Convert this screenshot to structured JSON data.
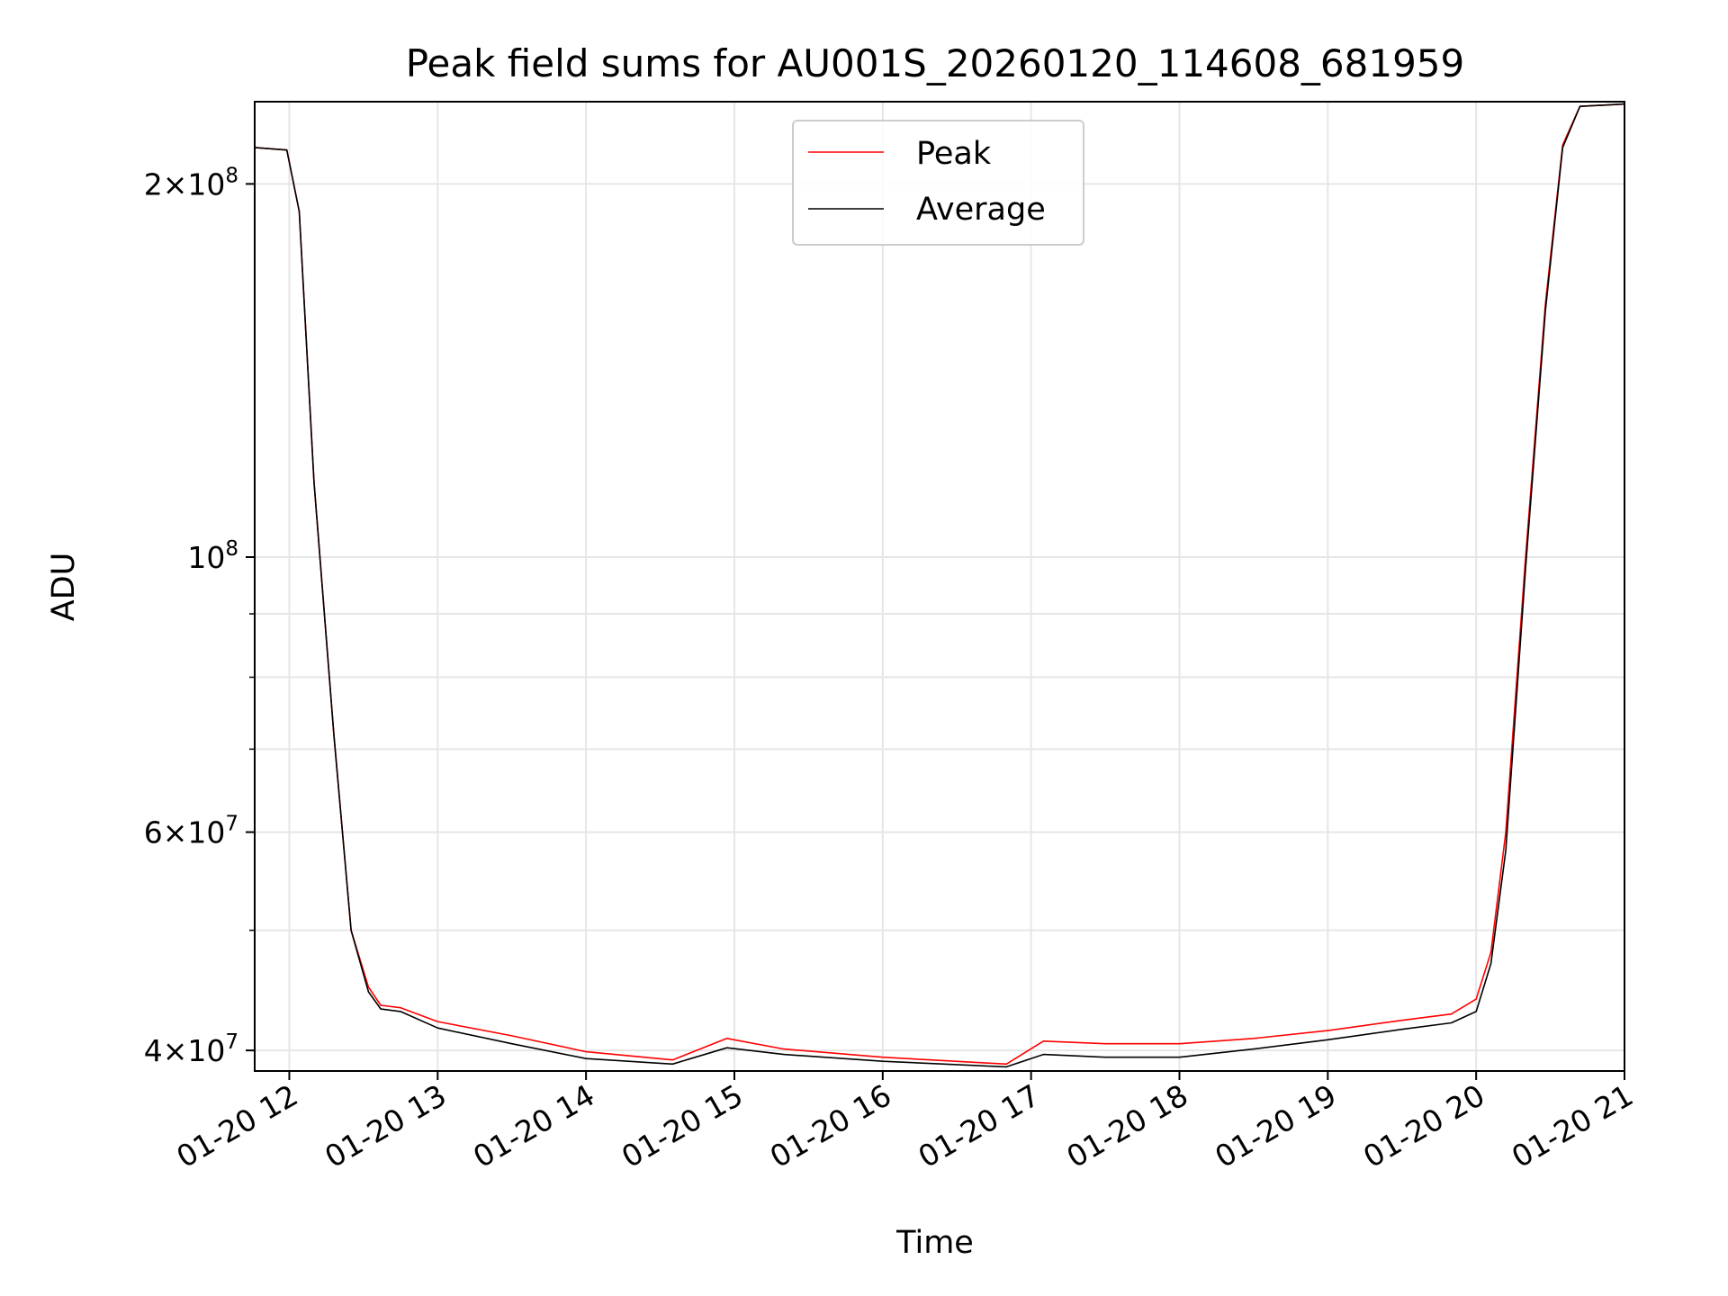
{
  "chart_data": {
    "type": "line",
    "title": "Peak field sums for AU001S_20260120_114608_681959",
    "xlabel": "Time",
    "ylabel": "ADU",
    "y_scale": "log",
    "xlim": [
      "2026-01-20 11:46",
      "2026-01-20 21:00"
    ],
    "ylim": [
      38500000,
      233000000
    ],
    "grid": true,
    "legend_position": "upper center",
    "x_ticks": [
      {
        "value": "2026-01-20 12:00",
        "label": "01-20 12"
      },
      {
        "value": "2026-01-20 13:00",
        "label": "01-20 13"
      },
      {
        "value": "2026-01-20 14:00",
        "label": "01-20 14"
      },
      {
        "value": "2026-01-20 15:00",
        "label": "01-20 15"
      },
      {
        "value": "2026-01-20 16:00",
        "label": "01-20 16"
      },
      {
        "value": "2026-01-20 17:00",
        "label": "01-20 17"
      },
      {
        "value": "2026-01-20 18:00",
        "label": "01-20 18"
      },
      {
        "value": "2026-01-20 19:00",
        "label": "01-20 19"
      },
      {
        "value": "2026-01-20 20:00",
        "label": "01-20 20"
      },
      {
        "value": "2026-01-20 21:00",
        "label": "01-20 21"
      }
    ],
    "y_ticks_major": [
      {
        "value": 40000000,
        "mantissa": "4",
        "exponent": "7"
      },
      {
        "value": 60000000,
        "mantissa": "6",
        "exponent": "7"
      },
      {
        "value": 100000000,
        "mantissa": "",
        "exponent": "8"
      },
      {
        "value": 200000000,
        "mantissa": "2",
        "exponent": "8"
      }
    ],
    "y_ticks_minor": [
      50000000,
      70000000,
      80000000,
      90000000
    ],
    "series": [
      {
        "name": "Peak",
        "color": "#ff0000",
        "points": [
          [
            "2026-01-20 11:46",
            214000000
          ],
          [
            "2026-01-20 11:59",
            213000000
          ],
          [
            "2026-01-20 12:04",
            190000000
          ],
          [
            "2026-01-20 12:10",
            115000000
          ],
          [
            "2026-01-20 12:18",
            72000000
          ],
          [
            "2026-01-20 12:25",
            50000000
          ],
          [
            "2026-01-20 12:32",
            45000000
          ],
          [
            "2026-01-20 12:37",
            43500000
          ],
          [
            "2026-01-20 12:45",
            43300000
          ],
          [
            "2026-01-20 13:00",
            42200000
          ],
          [
            "2026-01-20 13:30",
            41100000
          ],
          [
            "2026-01-20 14:00",
            39900000
          ],
          [
            "2026-01-20 14:35",
            39300000
          ],
          [
            "2026-01-20 14:57",
            40900000
          ],
          [
            "2026-01-20 15:20",
            40100000
          ],
          [
            "2026-01-20 16:00",
            39500000
          ],
          [
            "2026-01-20 16:50",
            39000000
          ],
          [
            "2026-01-20 17:05",
            40700000
          ],
          [
            "2026-01-20 17:30",
            40500000
          ],
          [
            "2026-01-20 18:00",
            40500000
          ],
          [
            "2026-01-20 18:30",
            40900000
          ],
          [
            "2026-01-20 19:00",
            41500000
          ],
          [
            "2026-01-20 19:30",
            42300000
          ],
          [
            "2026-01-20 19:50",
            42800000
          ],
          [
            "2026-01-20 20:00",
            44000000
          ],
          [
            "2026-01-20 20:06",
            48000000
          ],
          [
            "2026-01-20 20:12",
            60000000
          ],
          [
            "2026-01-20 20:20",
            100000000
          ],
          [
            "2026-01-20 20:28",
            160000000
          ],
          [
            "2026-01-20 20:35",
            215000000
          ],
          [
            "2026-01-20 20:42",
            231000000
          ],
          [
            "2026-01-20 21:00",
            232000000
          ]
        ]
      },
      {
        "name": "Average",
        "color": "#000000",
        "points": [
          [
            "2026-01-20 11:46",
            214000000
          ],
          [
            "2026-01-20 11:59",
            213000000
          ],
          [
            "2026-01-20 12:04",
            190000000
          ],
          [
            "2026-01-20 12:10",
            115000000
          ],
          [
            "2026-01-20 12:18",
            72000000
          ],
          [
            "2026-01-20 12:25",
            50000000
          ],
          [
            "2026-01-20 12:32",
            44600000
          ],
          [
            "2026-01-20 12:37",
            43200000
          ],
          [
            "2026-01-20 12:45",
            43000000
          ],
          [
            "2026-01-20 13:00",
            41700000
          ],
          [
            "2026-01-20 13:30",
            40500000
          ],
          [
            "2026-01-20 14:00",
            39400000
          ],
          [
            "2026-01-20 14:35",
            39000000
          ],
          [
            "2026-01-20 14:57",
            40200000
          ],
          [
            "2026-01-20 15:20",
            39700000
          ],
          [
            "2026-01-20 16:00",
            39200000
          ],
          [
            "2026-01-20 16:50",
            38800000
          ],
          [
            "2026-01-20 17:05",
            39700000
          ],
          [
            "2026-01-20 17:30",
            39500000
          ],
          [
            "2026-01-20 18:00",
            39500000
          ],
          [
            "2026-01-20 18:30",
            40100000
          ],
          [
            "2026-01-20 19:00",
            40800000
          ],
          [
            "2026-01-20 19:30",
            41600000
          ],
          [
            "2026-01-20 19:50",
            42100000
          ],
          [
            "2026-01-20 20:00",
            43000000
          ],
          [
            "2026-01-20 20:06",
            47000000
          ],
          [
            "2026-01-20 20:12",
            58000000
          ],
          [
            "2026-01-20 20:20",
            98000000
          ],
          [
            "2026-01-20 20:28",
            158000000
          ],
          [
            "2026-01-20 20:35",
            214000000
          ],
          [
            "2026-01-20 20:42",
            231000000
          ],
          [
            "2026-01-20 21:00",
            232000000
          ]
        ]
      }
    ]
  }
}
